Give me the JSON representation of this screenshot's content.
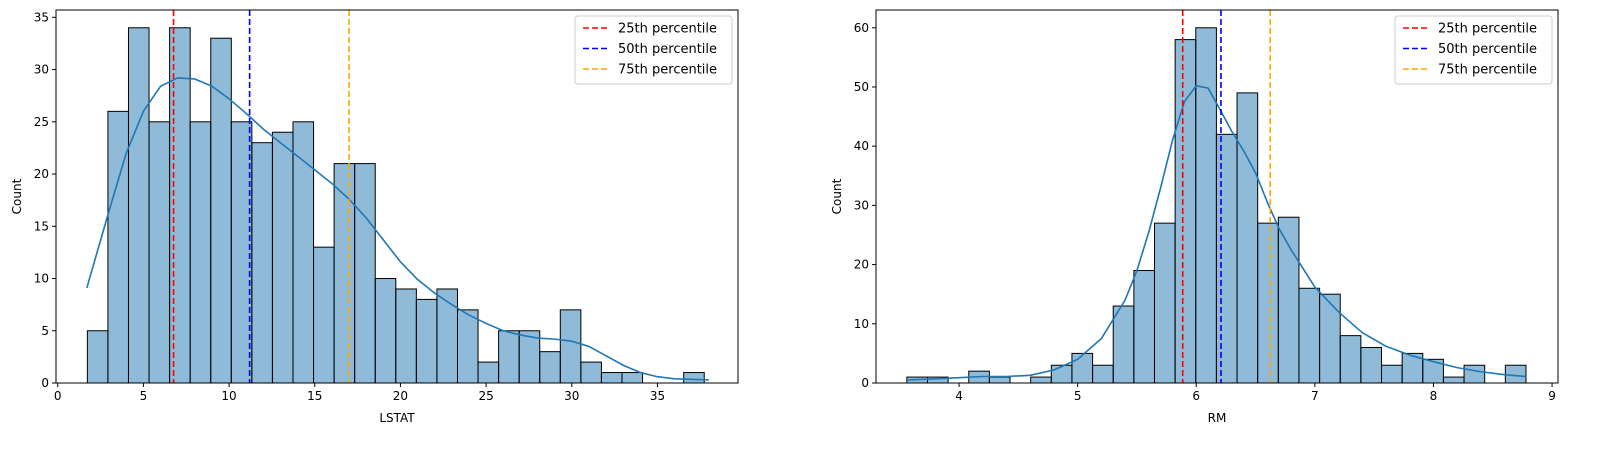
{
  "chart_data": [
    {
      "type": "histogram",
      "xlabel": "LSTAT",
      "ylabel": "Count",
      "xlim": [
        -0.1,
        39.7
      ],
      "ylim": [
        0,
        35.7
      ],
      "xticks": [
        0,
        5,
        10,
        15,
        20,
        25,
        30,
        35
      ],
      "yticks": [
        0,
        5,
        10,
        15,
        20,
        25,
        30,
        35
      ],
      "bin_start": 1.73,
      "bin_width": 1.2,
      "counts": [
        5,
        26,
        34,
        25,
        34,
        25,
        33,
        25,
        23,
        24,
        25,
        13,
        21,
        21,
        10,
        9,
        8,
        9,
        7,
        2,
        5,
        5,
        3,
        7,
        2,
        1,
        1,
        0,
        0,
        1
      ],
      "kde": {
        "x": [
          1.7,
          3,
          4,
          5,
          6,
          7,
          8,
          9,
          10,
          11,
          12,
          13,
          14,
          15,
          16,
          17,
          18,
          19,
          20,
          21,
          22,
          23,
          24,
          25,
          26,
          27,
          28,
          29,
          30,
          31,
          32,
          33,
          34,
          35,
          36,
          38
        ],
        "y": [
          9.1,
          16.5,
          22,
          26,
          28.4,
          29.2,
          29.1,
          28.4,
          27.2,
          25.8,
          24.3,
          23,
          21.7,
          20.4,
          19.1,
          17.6,
          15.8,
          13.7,
          11.6,
          9.9,
          8.6,
          7.5,
          6.5,
          5.7,
          5,
          4.6,
          4.3,
          4.2,
          4,
          3.5,
          2.6,
          1.7,
          1,
          0.6,
          0.4,
          0.3
        ]
      },
      "percentiles": [
        {
          "label": "25th percentile",
          "value": 6.76,
          "color": "#ff0000"
        },
        {
          "label": "50th percentile",
          "value": 11.2,
          "color": "#0000ff"
        },
        {
          "label": "75th percentile",
          "value": 17.0,
          "color": "#ffa500"
        }
      ],
      "bar_color": "#1f77b4",
      "kde_color": "#1f77b4",
      "legend_position": "top-right"
    },
    {
      "type": "histogram",
      "xlabel": "RM",
      "ylabel": "Count",
      "xlim": [
        3.3,
        9.05
      ],
      "ylim": [
        0,
        63
      ],
      "xticks": [
        4,
        5,
        6,
        7,
        8,
        9
      ],
      "yticks": [
        0,
        10,
        20,
        30,
        40,
        50,
        60
      ],
      "bin_start": 3.56,
      "bin_width": 0.174,
      "counts": [
        1,
        1,
        0,
        2,
        1,
        0,
        1,
        3,
        5,
        3,
        13,
        19,
        27,
        58,
        60,
        42,
        49,
        27,
        28,
        16,
        15,
        8,
        6,
        3,
        5,
        4,
        1,
        3,
        0,
        3
      ],
      "kde": {
        "x": [
          3.56,
          3.8,
          4.0,
          4.2,
          4.4,
          4.6,
          4.8,
          5.0,
          5.2,
          5.4,
          5.5,
          5.6,
          5.7,
          5.8,
          5.9,
          6.0,
          6.1,
          6.2,
          6.3,
          6.4,
          6.5,
          6.6,
          6.7,
          6.8,
          7.0,
          7.2,
          7.4,
          7.6,
          7.8,
          8.0,
          8.2,
          8.4,
          8.6,
          8.78
        ],
        "y": [
          0.5,
          0.7,
          0.9,
          1.1,
          1.1,
          1.3,
          2.2,
          4,
          7.5,
          14,
          19,
          25.5,
          33,
          41,
          47.5,
          50.2,
          49.8,
          46.2,
          42.5,
          39.2,
          35.5,
          30.5,
          26,
          22.5,
          16.2,
          12,
          8.5,
          6.2,
          4.7,
          3.6,
          2.6,
          1.9,
          1.4,
          1.1
        ]
      },
      "percentiles": [
        {
          "label": "25th percentile",
          "value": 5.886,
          "color": "#ff0000"
        },
        {
          "label": "50th percentile",
          "value": 6.2085,
          "color": "#0000ff"
        },
        {
          "label": "75th percentile",
          "value": 6.6235,
          "color": "#ffa500"
        }
      ],
      "bar_color": "#1f77b4",
      "kde_color": "#1f77b4",
      "legend_position": "top-right"
    }
  ]
}
